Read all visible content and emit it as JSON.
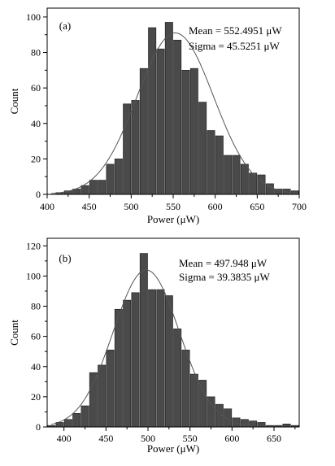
{
  "chart_data": [
    {
      "type": "bar",
      "panel_label": "(a)",
      "xlabel": "Power (μW)",
      "ylabel": "Count",
      "xlim": [
        400,
        700
      ],
      "ylim": [
        0,
        105
      ],
      "xticks": [
        400,
        450,
        500,
        550,
        600,
        650,
        700
      ],
      "yticks": [
        0,
        20,
        40,
        60,
        80,
        100
      ],
      "bin_width": 10,
      "bins_start": [
        410,
        420,
        430,
        440,
        450,
        460,
        470,
        480,
        490,
        500,
        510,
        520,
        530,
        540,
        550,
        560,
        570,
        580,
        590,
        600,
        610,
        620,
        630,
        640,
        650,
        660,
        670,
        680,
        690
      ],
      "values": [
        1,
        2,
        3,
        5,
        8,
        8,
        17,
        20,
        51,
        53,
        71,
        94,
        82,
        97,
        87,
        70,
        71,
        52,
        36,
        33,
        22,
        22,
        17,
        12,
        11,
        6,
        3,
        3,
        2
      ],
      "fit": {
        "type": "gaussian",
        "mean": 552.4951,
        "sigma": 45.5251,
        "peak": 91
      },
      "annotations": [
        "Mean = 552.4951 μW",
        "Sigma = 45.5251 μW"
      ]
    },
    {
      "type": "bar",
      "panel_label": "(b)",
      "xlabel": "Power (μW)",
      "ylabel": "Count",
      "xlim": [
        380,
        680
      ],
      "ylim": [
        0,
        125
      ],
      "xticks": [
        400,
        450,
        500,
        550,
        600,
        650
      ],
      "yticks": [
        0,
        20,
        40,
        60,
        80,
        100,
        120
      ],
      "bin_width": 10,
      "bins_start": [
        380,
        390,
        400,
        410,
        420,
        430,
        440,
        450,
        460,
        470,
        480,
        490,
        500,
        510,
        520,
        530,
        540,
        550,
        560,
        570,
        580,
        590,
        600,
        610,
        620,
        630,
        640,
        650,
        660,
        670
      ],
      "values": [
        1,
        3,
        5,
        9,
        14,
        36,
        41,
        51,
        78,
        84,
        89,
        115,
        91,
        91,
        87,
        65,
        51,
        35,
        31,
        20,
        15,
        12,
        6,
        5,
        4,
        3,
        1,
        1,
        2,
        1
      ],
      "fit": {
        "type": "gaussian",
        "mean": 497.948,
        "sigma": 39.3835,
        "peak": 104
      },
      "annotations": [
        "Mean = 497.948 μW",
        "Sigma = 39.3835 μW"
      ]
    }
  ]
}
